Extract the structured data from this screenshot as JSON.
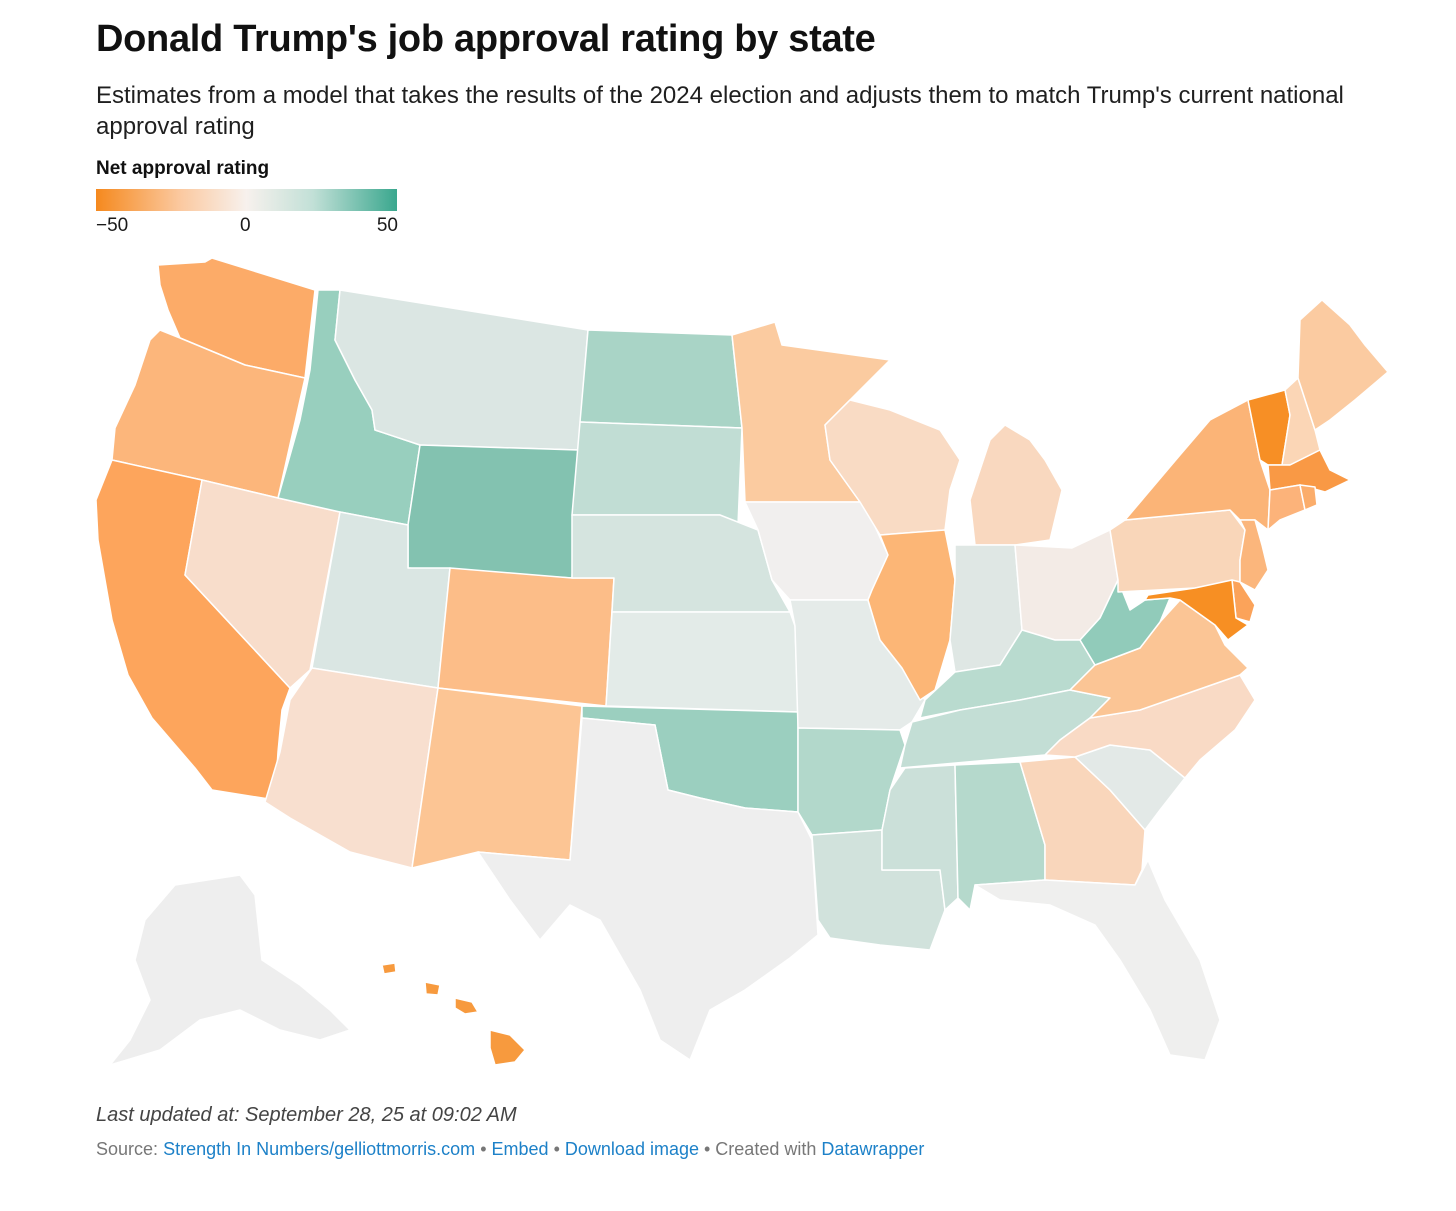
{
  "header": {
    "title": "Donald Trump's job approval rating by state",
    "subtitle": "Estimates from a model that takes the results of the 2024 election and adjusts them to match Trump's current national approval rating"
  },
  "legend": {
    "title": "Net approval rating",
    "min_label": "−50",
    "mid_label": "0",
    "max_label": "50",
    "colors": [
      "#f5891e",
      "#fbc9a0",
      "#f7f1ed",
      "#c2e0d7",
      "#3aa78e"
    ]
  },
  "map_data": {
    "metric": "Net approval rating",
    "scale": [
      -50,
      50
    ],
    "states": [
      {
        "code": "WA",
        "color": "#fcab68"
      },
      {
        "code": "OR",
        "color": "#fcb67b"
      },
      {
        "code": "CA",
        "color": "#fda55c"
      },
      {
        "code": "NV",
        "color": "#f8ddcb"
      },
      {
        "code": "ID",
        "color": "#98cfbe"
      },
      {
        "code": "MT",
        "color": "#dbe6e3"
      },
      {
        "code": "WY",
        "color": "#83c2b0"
      },
      {
        "code": "UT",
        "color": "#dae6e3"
      },
      {
        "code": "AZ",
        "color": "#f8dfcf"
      },
      {
        "code": "CO",
        "color": "#fcbd88"
      },
      {
        "code": "NM",
        "color": "#fcc594"
      },
      {
        "code": "ND",
        "color": "#a9d4c6"
      },
      {
        "code": "SD",
        "color": "#c1ddd4"
      },
      {
        "code": "NE",
        "color": "#d5e4df"
      },
      {
        "code": "KS",
        "color": "#e3ebe8"
      },
      {
        "code": "OK",
        "color": "#9bcfbf"
      },
      {
        "code": "TX",
        "color": "#eeeeee"
      },
      {
        "code": "MN",
        "color": "#fbcba0"
      },
      {
        "code": "IA",
        "color": "#f1efee"
      },
      {
        "code": "MO",
        "color": "#e5ebe9"
      },
      {
        "code": "AR",
        "color": "#b2d8cb"
      },
      {
        "code": "LA",
        "color": "#d1e2dc"
      },
      {
        "code": "WI",
        "color": "#f9dbc4"
      },
      {
        "code": "IL",
        "color": "#fcb676"
      },
      {
        "code": "MI",
        "color": "#f9d8bf"
      },
      {
        "code": "IN",
        "color": "#dfe7e4"
      },
      {
        "code": "OH",
        "color": "#f3ebe6"
      },
      {
        "code": "KY",
        "color": "#b9dbcf"
      },
      {
        "code": "TN",
        "color": "#c3ded5"
      },
      {
        "code": "MS",
        "color": "#cbe0d9"
      },
      {
        "code": "AL",
        "color": "#b5d9cc"
      },
      {
        "code": "GA",
        "color": "#f9d6bb"
      },
      {
        "code": "FL",
        "color": "#efefee"
      },
      {
        "code": "SC",
        "color": "#e3e9e7"
      },
      {
        "code": "NC",
        "color": "#f9dac5"
      },
      {
        "code": "VA",
        "color": "#fbc595"
      },
      {
        "code": "WV",
        "color": "#91cbba"
      },
      {
        "code": "PA",
        "color": "#f9d6b9"
      },
      {
        "code": "NY",
        "color": "#fbb477"
      },
      {
        "code": "VT",
        "color": "#f78f25"
      },
      {
        "code": "NH",
        "color": "#fbd6b6"
      },
      {
        "code": "ME",
        "color": "#fbcba1"
      },
      {
        "code": "MA",
        "color": "#f99945"
      },
      {
        "code": "CT",
        "color": "#fcb37a"
      },
      {
        "code": "RI",
        "color": "#fbad6b"
      },
      {
        "code": "NJ",
        "color": "#fbb67c"
      },
      {
        "code": "DE",
        "color": "#fba35a"
      },
      {
        "code": "MD",
        "color": "#f78f23"
      },
      {
        "code": "AK",
        "color": "#eeeeee"
      },
      {
        "code": "HI",
        "color": "#f79a3e"
      }
    ]
  },
  "footer": {
    "updated": "Last updated at: September 28, 25 at 09:02 AM",
    "source_label": "Source:",
    "source_link": "Strength In Numbers/gelliottmorris.com",
    "sep1": "•",
    "embed": "Embed",
    "sep2": "•",
    "download": "Download image",
    "created_with": "• Created with",
    "datawrapper": "Datawrapper"
  }
}
